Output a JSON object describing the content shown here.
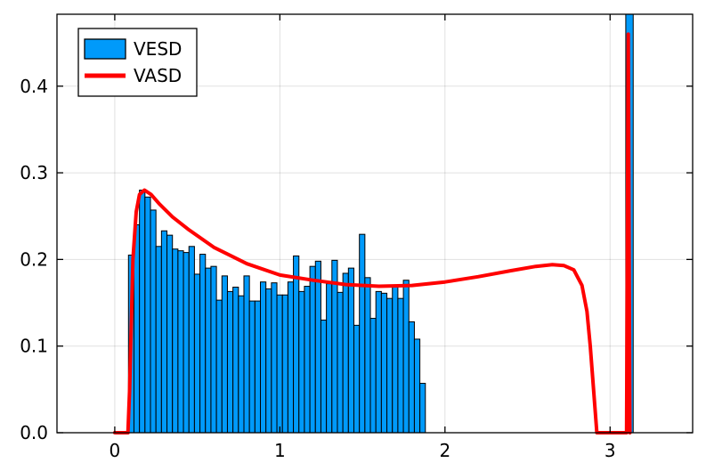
{
  "chart_data": {
    "type": "bar",
    "title": "",
    "xlabel": "",
    "ylabel": "",
    "xlim": [
      -0.35,
      3.5
    ],
    "ylim": [
      0,
      0.483
    ],
    "grid": true,
    "legend_position": "top-left",
    "x_ticks": [
      {
        "value": 0,
        "label": "0"
      },
      {
        "value": 1,
        "label": "1"
      },
      {
        "value": 2,
        "label": "2"
      },
      {
        "value": 3,
        "label": "3"
      }
    ],
    "y_ticks": [
      {
        "value": 0,
        "label": "0.0"
      },
      {
        "value": 0.1,
        "label": "0.1"
      },
      {
        "value": 0.2,
        "label": "0.2"
      },
      {
        "value": 0.3,
        "label": "0.3"
      },
      {
        "value": 0.4,
        "label": "0.4"
      }
    ],
    "histogram": {
      "name": "VESD",
      "color": "#009AFA",
      "bin_width": 0.0333,
      "bins_start": 0.083,
      "values": [
        0.205,
        0.24,
        0.28,
        0.272,
        0.257,
        0.215,
        0.233,
        0.228,
        0.212,
        0.21,
        0.208,
        0.215,
        0.183,
        0.206,
        0.19,
        0.192,
        0.153,
        0.181,
        0.163,
        0.168,
        0.158,
        0.181,
        0.152,
        0.152,
        0.174,
        0.166,
        0.173,
        0.159,
        0.159,
        0.174,
        0.204,
        0.163,
        0.169,
        0.192,
        0.198,
        0.13,
        0.172,
        0.199,
        0.162,
        0.184,
        0.19,
        0.124,
        0.229,
        0.179,
        0.132,
        0.163,
        0.161,
        0.155,
        0.169,
        0.155,
        0.176,
        0.128,
        0.108,
        0.057
      ],
      "outlier_bars": [
        {
          "x_start": 3.095,
          "x_end": 3.14,
          "value": 0.483
        }
      ]
    },
    "series": [
      {
        "name": "VASD",
        "color": "#FF0000",
        "type": "line",
        "x": [
          0.0,
          0.08,
          0.09,
          0.11,
          0.13,
          0.15,
          0.18,
          0.22,
          0.27,
          0.35,
          0.45,
          0.6,
          0.8,
          1.0,
          1.2,
          1.4,
          1.6,
          1.8,
          2.0,
          2.2,
          2.4,
          2.55,
          2.65,
          2.72,
          2.78,
          2.83,
          2.86,
          2.88,
          2.9,
          2.92,
          2.94,
          3.09,
          3.1,
          3.11,
          3.12
        ],
        "y": [
          0.0,
          0.0,
          0.05,
          0.2,
          0.255,
          0.275,
          0.28,
          0.275,
          0.264,
          0.249,
          0.234,
          0.214,
          0.195,
          0.182,
          0.176,
          0.171,
          0.169,
          0.17,
          0.174,
          0.18,
          0.187,
          0.192,
          0.194,
          0.193,
          0.188,
          0.17,
          0.14,
          0.1,
          0.05,
          0.0,
          0.0,
          0.0,
          0.0,
          0.46,
          0.0
        ]
      }
    ],
    "legend": [
      {
        "label": "VESD",
        "kind": "bar",
        "color": "#009AFA"
      },
      {
        "label": "VASD",
        "kind": "line",
        "color": "#FF0000"
      }
    ]
  }
}
